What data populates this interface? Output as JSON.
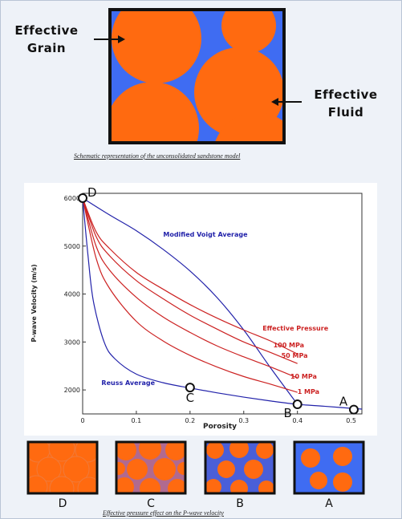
{
  "top_schematic": {
    "label_grain": "Effective\nGrain",
    "label_fluid": "Effective\nFluid",
    "caption": "Schematic representation of the unconsolidated sandstone model",
    "colors": {
      "grain": "#ff6a10",
      "fluid": "#3f6cf2",
      "border": "#111111"
    }
  },
  "chart_data": {
    "type": "line",
    "xlabel": "Porosity",
    "ylabel": "P-wave Velocity (m/s)",
    "xlim": [
      0,
      0.52
    ],
    "ylim": [
      1500,
      6100
    ],
    "x_ticks": [
      0,
      0.1,
      0.2,
      0.3,
      0.4,
      0.5
    ],
    "y_ticks": [
      2000,
      3000,
      4000,
      5000,
      6000
    ],
    "x_tick_labels": [
      "0",
      "0.1",
      "0.2",
      "0.3",
      "0.4",
      "0.5"
    ],
    "y_tick_labels": [
      "2000",
      "3000",
      "4000",
      "5000",
      "6000"
    ],
    "grid": false,
    "series": [
      {
        "name": "Modified Voigt Average",
        "color": "#2222aa",
        "x": [
          0,
          0.05,
          0.1,
          0.15,
          0.2,
          0.25,
          0.3,
          0.35,
          0.4
        ],
        "y": [
          6000,
          5650,
          5320,
          4930,
          4480,
          3930,
          3250,
          2460,
          1700
        ]
      },
      {
        "name": "Reuss Average",
        "color": "#2222aa",
        "x": [
          0,
          0.01,
          0.02,
          0.04,
          0.06,
          0.1,
          0.15,
          0.2,
          0.25,
          0.3,
          0.35,
          0.4,
          0.45,
          0.52
        ],
        "y": [
          6000,
          4800,
          3850,
          3000,
          2650,
          2330,
          2150,
          2040,
          1940,
          1850,
          1770,
          1700,
          1660,
          1600
        ]
      },
      {
        "name": "100 MPa",
        "color": "#cc2222",
        "x": [
          0,
          0.025,
          0.05,
          0.1,
          0.15,
          0.2,
          0.25,
          0.3,
          0.35,
          0.4
        ],
        "y": [
          6000,
          5300,
          4950,
          4450,
          4100,
          3780,
          3500,
          3250,
          3020,
          2750
        ]
      },
      {
        "name": "50 MPa",
        "color": "#cc2222",
        "x": [
          0,
          0.025,
          0.05,
          0.1,
          0.15,
          0.2,
          0.25,
          0.3,
          0.35,
          0.4
        ],
        "y": [
          6000,
          5200,
          4800,
          4280,
          3900,
          3560,
          3270,
          3000,
          2780,
          2550
        ]
      },
      {
        "name": "10 MPa",
        "color": "#cc2222",
        "x": [
          0,
          0.025,
          0.05,
          0.1,
          0.15,
          0.2,
          0.25,
          0.3,
          0.35,
          0.4
        ],
        "y": [
          6000,
          5000,
          4500,
          3930,
          3520,
          3200,
          2920,
          2690,
          2480,
          2250
        ]
      },
      {
        "name": "1 MPa",
        "color": "#cc2222",
        "x": [
          0,
          0.025,
          0.05,
          0.1,
          0.15,
          0.2,
          0.25,
          0.3,
          0.35,
          0.4
        ],
        "y": [
          6000,
          4750,
          4120,
          3430,
          3020,
          2720,
          2480,
          2280,
          2120,
          1950
        ]
      }
    ],
    "annotations": {
      "voigt_label": "Modified Voigt Average",
      "reuss_label": "Reuss Average",
      "pressure_title": "Effective Pressure",
      "pressure_labels": [
        "100 MPa",
        "50 MPa",
        "10 MPa",
        "1 MPa"
      ]
    },
    "points": [
      {
        "label": "D",
        "x": 0,
        "y": 6000
      },
      {
        "label": "C",
        "x": 0.2,
        "y": 2050
      },
      {
        "label": "B",
        "x": 0.4,
        "y": 1700
      },
      {
        "label": "A",
        "x": 0.505,
        "y": 1590
      }
    ]
  },
  "thumbnails": {
    "labels": [
      "D",
      "C",
      "B",
      "A"
    ],
    "caption": "Effective pressure effect on the P-wave velocity"
  }
}
